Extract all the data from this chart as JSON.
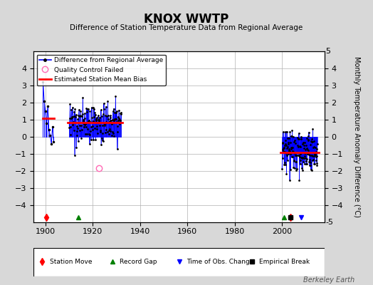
{
  "title": "KNOX WWTP",
  "subtitle": "Difference of Station Temperature Data from Regional Average",
  "ylabel": "Monthly Temperature Anomaly Difference (°C)",
  "xlabel_ticks": [
    1900,
    1920,
    1940,
    1960,
    1980,
    2000
  ],
  "ylim": [
    -5,
    5
  ],
  "xlim": [
    1895,
    2018
  ],
  "background_color": "#d8d8d8",
  "plot_bg_color": "#ffffff",
  "grid_color": "#b0b0b0",
  "watermark": "Berkeley Earth",
  "cluster1_bias": 1.1,
  "cluster2_bias": 0.85,
  "cluster3_bias": -0.9,
  "station_moves": [
    1900.5,
    2003.5
  ],
  "record_gaps": [
    1914,
    2001
  ],
  "time_obs_changes": [
    2008
  ],
  "empirical_breaks": [
    2003.5
  ]
}
